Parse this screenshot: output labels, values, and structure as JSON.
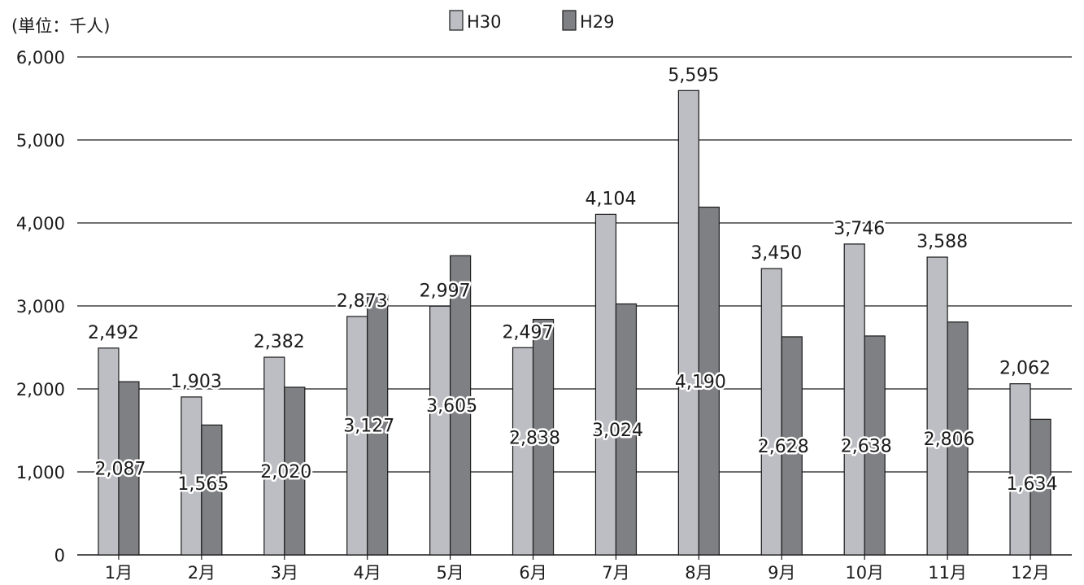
{
  "chart_data": {
    "type": "bar",
    "unit_label": "(単位：千人)",
    "categories": [
      "1月",
      "2月",
      "3月",
      "4月",
      "5月",
      "6月",
      "7月",
      "8月",
      "9月",
      "10月",
      "11月",
      "12月"
    ],
    "series": [
      {
        "name": "H30",
        "color": "#bdbec3",
        "values": [
          2492,
          1903,
          2382,
          2873,
          2997,
          2497,
          4104,
          5595,
          3450,
          3746,
          3588,
          2062
        ]
      },
      {
        "name": "H29",
        "color": "#7f8084",
        "values": [
          2087,
          1565,
          2020,
          3127,
          3605,
          2838,
          3024,
          4190,
          2628,
          2638,
          2806,
          1634
        ]
      }
    ],
    "data_labels": {
      "H30": [
        "2,492",
        "1,903",
        "2,382",
        "2,873",
        "2,997",
        "2,497",
        "4,104",
        "5,595",
        "3,450",
        "3,746",
        "3,588",
        "2,062"
      ],
      "H29": [
        "2,087",
        "1,565",
        "2,020",
        "3,127",
        "3,605",
        "2,838",
        "3,024",
        "4,190",
        "2,628",
        "2,638",
        "2,806",
        "1,634"
      ]
    },
    "y_ticks": [
      "0",
      "1,000",
      "2,000",
      "3,000",
      "4,000",
      "5,000",
      "6,000"
    ],
    "ylim": [
      0,
      6000
    ],
    "legend_position": "top-center",
    "grid": true
  }
}
